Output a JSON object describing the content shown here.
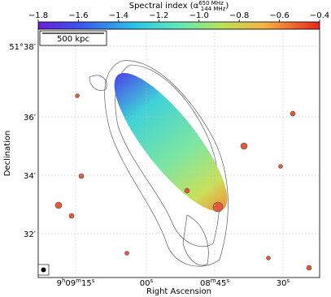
{
  "colorbar": {
    "label": {
      "text": "Spectral index (α",
      "sup": "650 MHz",
      "sub": "144 MHz",
      "close": ")"
    },
    "lim": [
      -1.8,
      -0.4
    ],
    "ticks": [
      {
        "value": -1.8,
        "label": "−1.8"
      },
      {
        "value": -1.6,
        "label": "−1.6"
      },
      {
        "value": -1.4,
        "label": "−1.4"
      },
      {
        "value": -1.2,
        "label": "−1.2"
      },
      {
        "value": -1.0,
        "label": "−1.0"
      },
      {
        "value": -0.8,
        "label": "−0.8"
      },
      {
        "value": -0.6,
        "label": "−0.6"
      },
      {
        "value": -0.4,
        "label": "−0.4"
      }
    ]
  },
  "scale_bar": "500 kpc",
  "y_axis": {
    "label": "Declination",
    "ticks": [
      {
        "main": "51°38′"
      },
      {
        "main": "36′"
      },
      {
        "main": "34′"
      },
      {
        "main": "32′"
      }
    ]
  },
  "x_axis": {
    "label": "Right Ascension",
    "ticks": [
      {
        "parts": [
          "9",
          "h",
          "09",
          "m",
          "15",
          "s"
        ]
      },
      {
        "parts": [
          "00",
          "s"
        ]
      },
      {
        "parts": [
          "08",
          "m",
          "45",
          "s"
        ]
      },
      {
        "parts": [
          "30",
          "s"
        ]
      }
    ]
  }
}
